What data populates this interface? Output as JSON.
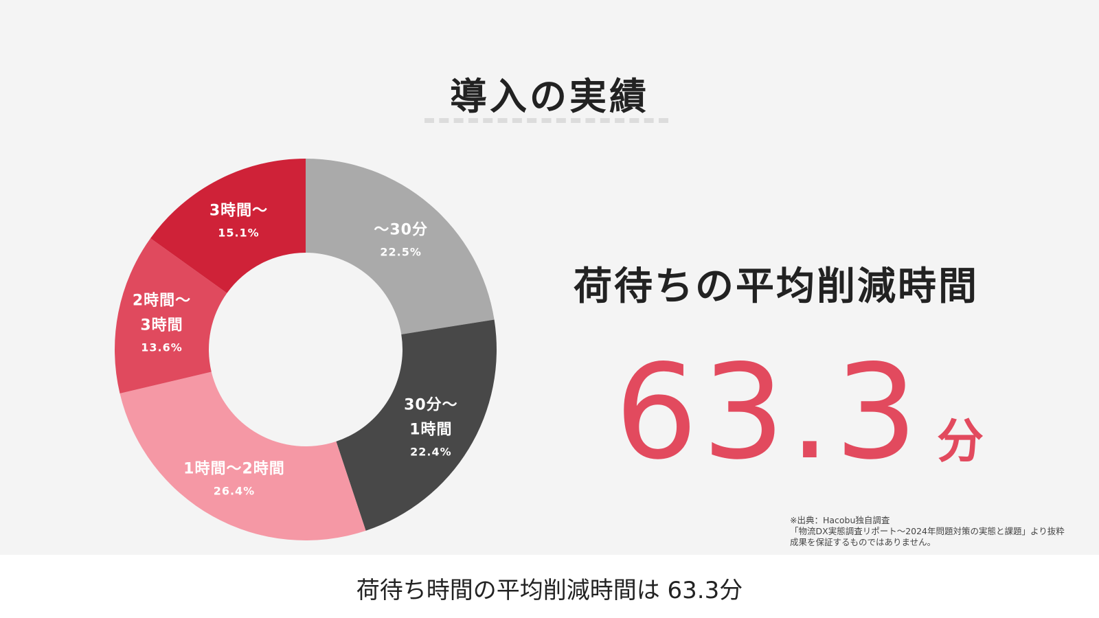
{
  "slide": {
    "title": "導入の実績",
    "headline": "荷待ちの平均削減時間",
    "headline_value": 63.3,
    "headline_unit": "分",
    "source_notes": [
      "※出典：Hacobu独自調査",
      "「物流DX実態調査リポート〜2024年問題対策の実態と課題」より抜粋",
      "成果を保証するものではありません。"
    ]
  },
  "caption": "荷待ち時間の平均削減時間は 63.3分",
  "chart_data": {
    "type": "donut",
    "categories": [
      "〜30分",
      "30分〜\n1時間",
      "1時間〜2時間",
      "2時間〜\n3時間",
      "3時間〜"
    ],
    "values": [
      22.5,
      22.4,
      26.4,
      13.6,
      15.1
    ],
    "value_labels": [
      "22.5%",
      "22.4%",
      "26.4%",
      "13.6%",
      "15.1%"
    ],
    "colors": [
      "#aaaaaa",
      "#484848",
      "#f598a5",
      "#e04a5e",
      "#cf2238"
    ]
  }
}
